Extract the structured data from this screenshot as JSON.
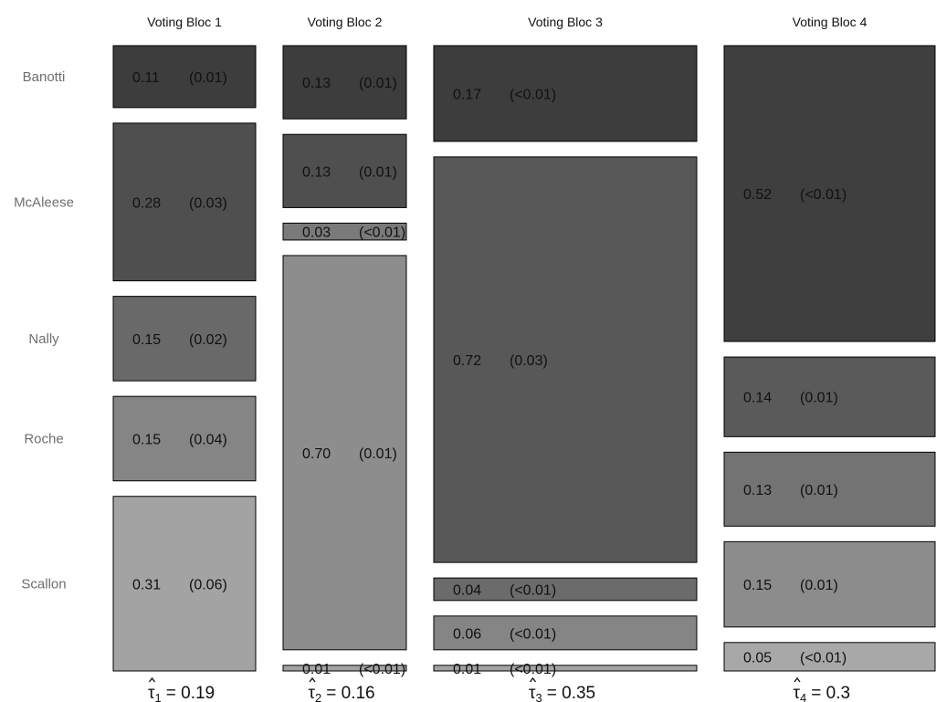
{
  "chart_data": {
    "type": "mosaic",
    "candidates": [
      "Banotti",
      "McAleese",
      "Nally",
      "Roche",
      "Scallon"
    ],
    "blocs": [
      {
        "title": "Voting Bloc 1",
        "tau_symbol": "τ",
        "tau_index": "1",
        "tau_text": "= 0.19",
        "tau": 0.19,
        "cells": [
          {
            "candidate": "Banotti",
            "value": 0.11,
            "value_label": "0.11",
            "se_label": "(0.01)",
            "fill": "#3d3d3d"
          },
          {
            "candidate": "McAleese",
            "value": 0.28,
            "value_label": "0.28",
            "se_label": "(0.03)",
            "fill": "#4f4f4f"
          },
          {
            "candidate": "Nally",
            "value": 0.15,
            "value_label": "0.15",
            "se_label": "(0.02)",
            "fill": "#696969"
          },
          {
            "candidate": "Roche",
            "value": 0.15,
            "value_label": "0.15",
            "se_label": "(0.04)",
            "fill": "#858585"
          },
          {
            "candidate": "Scallon",
            "value": 0.31,
            "value_label": "0.31",
            "se_label": "(0.06)",
            "fill": "#a3a3a3"
          }
        ]
      },
      {
        "title": "Voting Bloc 2",
        "tau_symbol": "τ",
        "tau_index": "2",
        "tau_text": "= 0.16",
        "tau": 0.16,
        "cells": [
          {
            "candidate": "Banotti",
            "value": 0.13,
            "value_label": "0.13",
            "se_label": "(0.01)",
            "fill": "#3d3d3d"
          },
          {
            "candidate": "McAleese",
            "value": 0.13,
            "value_label": "0.13",
            "se_label": "(0.01)",
            "fill": "#4f4f4f"
          },
          {
            "candidate": "Nally",
            "value": 0.03,
            "value_label": "0.03",
            "se_label": "(<0.01)",
            "fill": "#7a7a7a"
          },
          {
            "candidate": "Roche",
            "value": 0.7,
            "value_label": "0.70",
            "se_label": "(0.01)",
            "fill": "#8d8d8d"
          },
          {
            "candidate": "Scallon",
            "value": 0.01,
            "value_label": "0.01",
            "se_label": "(<0.01)",
            "fill": "#a3a3a3"
          }
        ]
      },
      {
        "title": "Voting Bloc 3",
        "tau_symbol": "τ",
        "tau_index": "3",
        "tau_text": "= 0.35",
        "tau": 0.35,
        "cells": [
          {
            "candidate": "Banotti",
            "value": 0.17,
            "value_label": "0.17",
            "se_label": "(<0.01)",
            "fill": "#3d3d3d"
          },
          {
            "candidate": "McAleese",
            "value": 0.72,
            "value_label": "0.72",
            "se_label": "(0.03)",
            "fill": "#585858"
          },
          {
            "candidate": "Nally",
            "value": 0.04,
            "value_label": "0.04",
            "se_label": "(<0.01)",
            "fill": "#6b6b6b"
          },
          {
            "candidate": "Roche",
            "value": 0.06,
            "value_label": "0.06",
            "se_label": "(<0.01)",
            "fill": "#858585"
          },
          {
            "candidate": "Scallon",
            "value": 0.01,
            "value_label": "0.01",
            "se_label": "(<0.01)",
            "fill": "#a3a3a3"
          }
        ]
      },
      {
        "title": "Voting Bloc 4",
        "tau_symbol": "τ",
        "tau_index": "4",
        "tau_text": "= 0.3",
        "tau": 0.3,
        "cells": [
          {
            "candidate": "Banotti",
            "value": 0.52,
            "value_label": "0.52",
            "se_label": "(<0.01)",
            "fill": "#3f3f3f"
          },
          {
            "candidate": "McAleese",
            "value": 0.14,
            "value_label": "0.14",
            "se_label": "(0.01)",
            "fill": "#5a5a5a"
          },
          {
            "candidate": "Nally",
            "value": 0.13,
            "value_label": "0.13",
            "se_label": "(0.01)",
            "fill": "#737373"
          },
          {
            "candidate": "Roche",
            "value": 0.15,
            "value_label": "0.15",
            "se_label": "(0.01)",
            "fill": "#8c8c8c"
          },
          {
            "candidate": "Scallon",
            "value": 0.05,
            "value_label": "0.05",
            "se_label": "(<0.01)",
            "fill": "#a8a8a8"
          }
        ]
      }
    ]
  }
}
